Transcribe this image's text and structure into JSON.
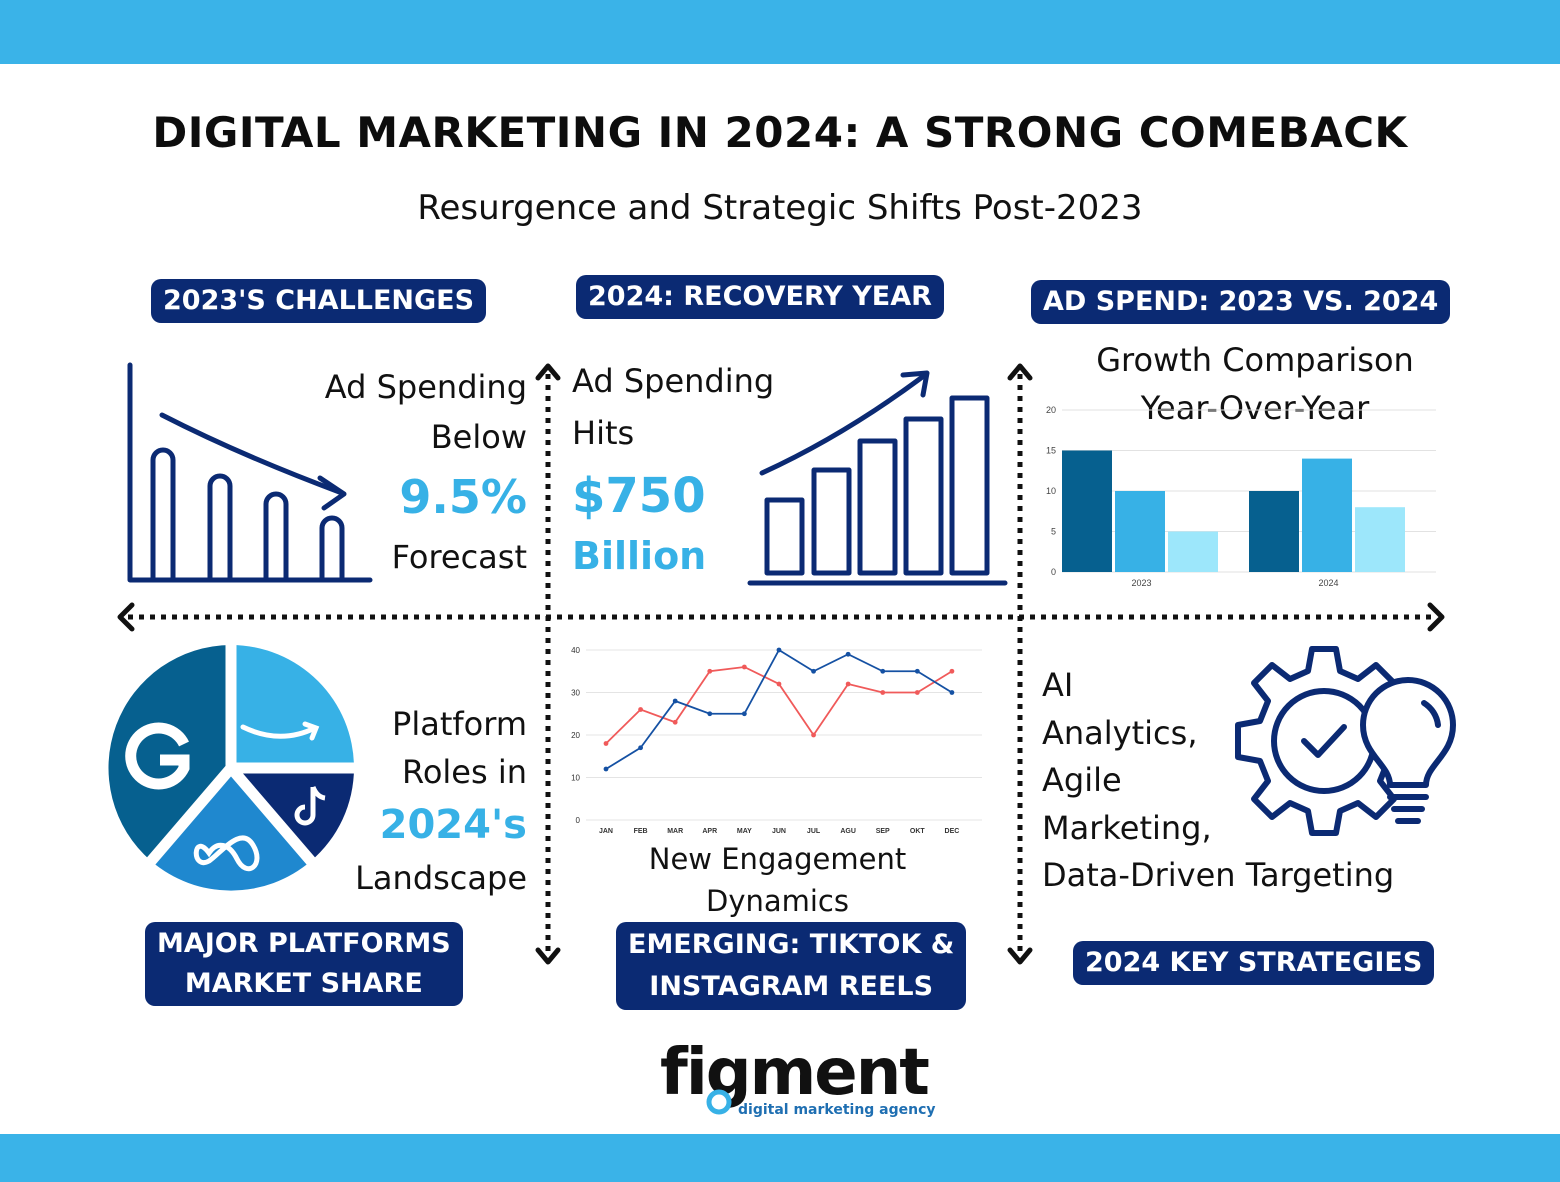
{
  "header": {
    "title": "DIGITAL MARKETING IN 2024: A STRONG COMEBACK",
    "subtitle": "Resurgence and Strategic Shifts Post-2023"
  },
  "labels": {
    "challenges": "2023'S CHALLENGES",
    "recovery": "2024: RECOVERY YEAR",
    "adspend": "AD SPEND: 2023 VS. 2024",
    "platforms": [
      "MAJOR PLATFORMS",
      "MARKET SHARE"
    ],
    "emerging": [
      "EMERGING: TIKTOK &",
      "INSTAGRAM REELS"
    ],
    "strategies": "2024 KEY STRATEGIES"
  },
  "challenges_text": {
    "line1": "Ad Spending",
    "line2": "Below",
    "value": "9.5%",
    "line3": "Forecast"
  },
  "recovery_text": {
    "line1": "Ad Spending",
    "line2": "Hits",
    "value": "$750",
    "unit": "Billion"
  },
  "platforms_text": {
    "line1": "Platform",
    "line2": "Roles in",
    "value": "2024's",
    "line3": "Landscape"
  },
  "engagement_caption": [
    "New Engagement",
    "Dynamics"
  ],
  "strategies_text": [
    "AI",
    "Analytics,",
    "Agile",
    "Marketing,",
    "Data-Driven Targeting"
  ],
  "pie_icons": [
    "g-icon",
    "amazon-smile-icon",
    "tiktok-icon",
    "meta-infinity-icon"
  ],
  "colors": {
    "accent": "#37b1e6",
    "navy": "#0b2a73",
    "bar_dark": "#06608f",
    "bar_mid": "#37b1e6",
    "bar_light": "#9de7fb",
    "line_red": "#f05a5a",
    "line_blue": "#1551a3"
  },
  "logo": {
    "word": "figment",
    "tagline": "digital marketing agency"
  },
  "chart_data": [
    {
      "type": "bar",
      "title": "Growth Comparison Year-Over-Year",
      "title_lines": [
        "Growth Comparison",
        "Year-Over-Year"
      ],
      "categories": [
        "2023",
        "2024"
      ],
      "series": [
        {
          "values": [
            15,
            10
          ]
        },
        {
          "values": [
            10,
            14
          ]
        },
        {
          "values": [
            5,
            8
          ]
        }
      ],
      "ylim": [
        0,
        20
      ],
      "yticks": [
        0,
        5,
        10,
        15,
        20
      ],
      "grid": true
    },
    {
      "type": "line",
      "x": [
        "JAN",
        "FEB",
        "MAR",
        "APR",
        "MAY",
        "JUN",
        "JUL",
        "AGU",
        "SEP",
        "OKT",
        "DEC"
      ],
      "series": [
        {
          "values": [
            18,
            26,
            23,
            35,
            36,
            32,
            20,
            32,
            30,
            30,
            35
          ]
        },
        {
          "values": [
            12,
            17,
            28,
            25,
            25,
            40,
            35,
            39,
            35,
            35,
            30
          ]
        }
      ],
      "ylim": [
        0,
        40
      ],
      "yticks": [
        0,
        10,
        20,
        30,
        40
      ],
      "grid": true
    }
  ]
}
